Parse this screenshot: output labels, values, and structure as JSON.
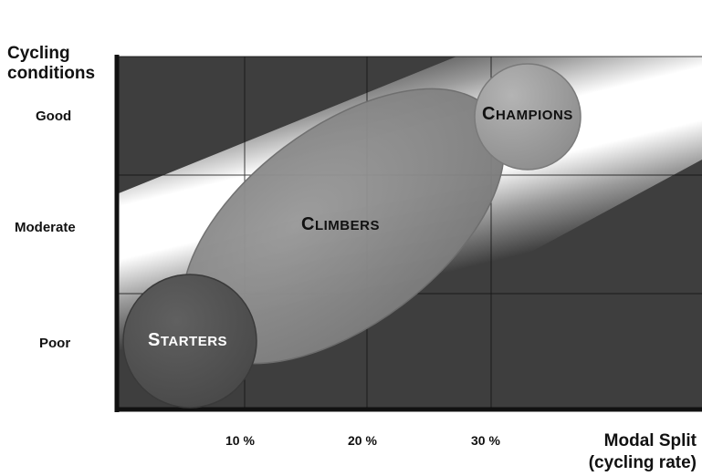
{
  "diagram": {
    "y_axis_title_line1": "Cycling",
    "y_axis_title_line2": "conditions",
    "y_ticks": [
      "Good",
      "Moderate",
      "Poor"
    ],
    "x_ticks": [
      "10 %",
      "20 %",
      "30 %"
    ],
    "x_axis_title_line1": "Modal Split",
    "x_axis_title_line2": "(cycling rate)",
    "stages": [
      {
        "name": "Starters",
        "first": "S",
        "rest": "TARTERS"
      },
      {
        "name": "Climbers",
        "first": "C",
        "rest": "LIMBERS"
      },
      {
        "name": "Champions",
        "first": "C",
        "rest": "HAMPIONS"
      }
    ]
  },
  "colors": {
    "background_dark": "#3e3e3e",
    "band_light": "#ffffff",
    "axis": "#111111",
    "starters_fill": "#555555",
    "climbers_fill": "#8a8a8a",
    "champions_fill": "#a4a4a4"
  }
}
